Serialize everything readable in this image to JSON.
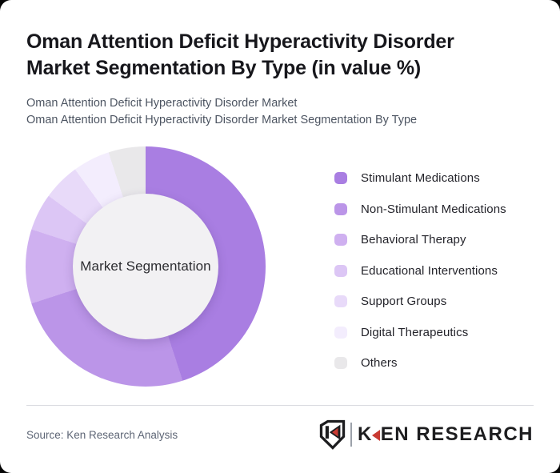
{
  "header": {
    "title": "Oman Attention Deficit Hyperactivity Disorder Market Segmentation By Type (in value %)",
    "subtitle_lines": [
      "Oman Attention Deficit Hyperactivity Disorder Market",
      "Oman Attention Deficit Hyperactivity Disorder Market Segmentation By Type"
    ]
  },
  "chart_data": {
    "type": "pie",
    "variant": "donut",
    "title": "Oman Attention Deficit Hyperactivity Disorder Market Segmentation By Type (in value %)",
    "unit": "value %",
    "center_label": "Market Segmentation",
    "start_angle_deg": 0,
    "direction": "clockwise",
    "inner_radius_ratio": 0.61,
    "legend_position": "right",
    "data_labels_shown": false,
    "series": [
      {
        "name": "Stimulant Medications",
        "value": 45,
        "color": "#a97ee2"
      },
      {
        "name": "Non-Stimulant Medications",
        "value": 25,
        "color": "#bb95e8"
      },
      {
        "name": "Behavioral Therapy",
        "value": 10,
        "color": "#cfb0f0"
      },
      {
        "name": "Educational Interventions",
        "value": 5,
        "color": "#dcc6f5"
      },
      {
        "name": "Support Groups",
        "value": 5,
        "color": "#e8daf9"
      },
      {
        "name": "Digital Therapeutics",
        "value": 5,
        "color": "#f3edfd"
      },
      {
        "name": "Others",
        "value": 5,
        "color": "#e9e8ea"
      }
    ]
  },
  "footer": {
    "source": "Source: Ken Research Analysis",
    "logo": {
      "brand_first_letter": "K",
      "brand_rest": "EN RESEARCH"
    }
  },
  "colors": {
    "page_background": "#060606",
    "card_background": "#ffffff",
    "title_text": "#17171c",
    "subtitle_text": "#4d5562",
    "legend_text": "#24242b",
    "source_text": "#5d6575",
    "divider": "#dadbe0",
    "donut_hole": "#f2f1f3",
    "logo_red": "#c93a32",
    "logo_dark": "#1d1d1f"
  }
}
